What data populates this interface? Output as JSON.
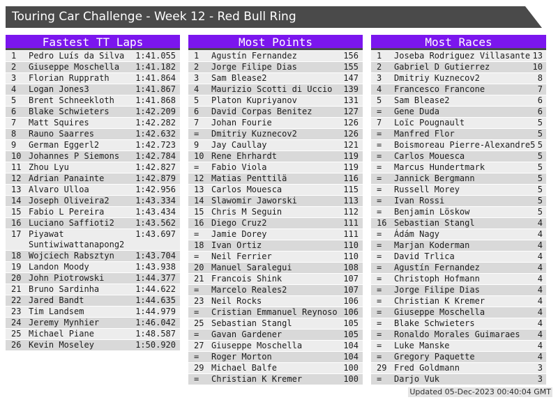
{
  "title": "Touring Car Challenge - Week 12 - Red Bull Ring",
  "footer": "Updated 05-Dec-2023 00:40:04 GMT",
  "colors": {
    "accent": "#7b16ee",
    "titlebar": "#4a4a4a",
    "row_light": "#ededed",
    "row_dark": "#d9d9d9"
  },
  "boards": [
    {
      "title": "Fastest TT Laps",
      "rows": [
        {
          "rank": "1",
          "name": "Pedro Luís da Silva",
          "value": "1:41.055"
        },
        {
          "rank": "2",
          "name": "Giuseppe Moschella",
          "value": "1:41.182"
        },
        {
          "rank": "3",
          "name": "Florian Rupprath",
          "value": "1:41.864"
        },
        {
          "rank": "4",
          "name": "Logan Jones3",
          "value": "1:41.867"
        },
        {
          "rank": "5",
          "name": "Brent Schneekloth",
          "value": "1:41.868"
        },
        {
          "rank": "6",
          "name": "Blake Schwieters",
          "value": "1:42.209"
        },
        {
          "rank": "7",
          "name": "Matt Squires",
          "value": "1:42.282"
        },
        {
          "rank": "8",
          "name": "Rauno Saarres",
          "value": "1:42.632"
        },
        {
          "rank": "9",
          "name": "German Eggerl2",
          "value": "1:42.723"
        },
        {
          "rank": "10",
          "name": "Johannes P Siemons",
          "value": "1:42.784"
        },
        {
          "rank": "11",
          "name": "Zhou Lyu",
          "value": "1:42.827"
        },
        {
          "rank": "12",
          "name": "Adrian Panainte",
          "value": "1:42.879"
        },
        {
          "rank": "13",
          "name": "Alvaro Ulloa",
          "value": "1:42.956"
        },
        {
          "rank": "14",
          "name": "Joseph Oliveira2",
          "value": "1:43.334"
        },
        {
          "rank": "15",
          "name": "Fabio L Pereira",
          "value": "1:43.434"
        },
        {
          "rank": "16",
          "name": "Luciano Saffioti2",
          "value": "1:43.562"
        },
        {
          "rank": "17",
          "name": "Piyawat Suntiwiwattanapong2",
          "value": "1:43.697"
        },
        {
          "rank": "18",
          "name": "Wojciech Rabsztyn",
          "value": "1:43.704"
        },
        {
          "rank": "19",
          "name": "Landon Moody",
          "value": "1:43.938"
        },
        {
          "rank": "20",
          "name": "John Piotrowski",
          "value": "1:44.377"
        },
        {
          "rank": "21",
          "name": "Bruno Sardinha",
          "value": "1:44.622"
        },
        {
          "rank": "22",
          "name": "Jared Bandt",
          "value": "1:44.635"
        },
        {
          "rank": "23",
          "name": "Tim Landsem",
          "value": "1:44.979"
        },
        {
          "rank": "24",
          "name": "Jeremy Mynhier",
          "value": "1:46.042"
        },
        {
          "rank": "25",
          "name": "Michael Piane",
          "value": "1:48.587"
        },
        {
          "rank": "26",
          "name": "Kevin Moseley",
          "value": "1:50.920"
        }
      ]
    },
    {
      "title": "Most Points",
      "rows": [
        {
          "rank": "1",
          "name": "Agustín Fernandez",
          "value": "156"
        },
        {
          "rank": "2",
          "name": "Jorge Filipe Dias",
          "value": "155"
        },
        {
          "rank": "3",
          "name": "Sam Blease2",
          "value": "147"
        },
        {
          "rank": "4",
          "name": "Maurizio Scotti di Uccio",
          "value": "139"
        },
        {
          "rank": "5",
          "name": "Platon Kupriyanov",
          "value": "131"
        },
        {
          "rank": "6",
          "name": "David Corpas Benitez",
          "value": "127"
        },
        {
          "rank": "7",
          "name": "Johan Fourie",
          "value": "126"
        },
        {
          "rank": "=",
          "name": "Dmitriy Kuznecov2",
          "value": "126"
        },
        {
          "rank": "9",
          "name": "Jay Caullay",
          "value": "121"
        },
        {
          "rank": "10",
          "name": "Rene Ehrhardt",
          "value": "119"
        },
        {
          "rank": "=",
          "name": "Fabio Viola",
          "value": "119"
        },
        {
          "rank": "12",
          "name": "Matias Penttilä",
          "value": "116"
        },
        {
          "rank": "13",
          "name": "Carlos Mouesca",
          "value": "115"
        },
        {
          "rank": "14",
          "name": "Slawomir Jaworski",
          "value": "113"
        },
        {
          "rank": "15",
          "name": "Chris M Seguin",
          "value": "112"
        },
        {
          "rank": "16",
          "name": "Diego Cruz2",
          "value": "111"
        },
        {
          "rank": "=",
          "name": "Jamie Dorey",
          "value": "111"
        },
        {
          "rank": "18",
          "name": "Ivan Ortiz",
          "value": "110"
        },
        {
          "rank": "=",
          "name": "Neil Ferrier",
          "value": "110"
        },
        {
          "rank": "20",
          "name": "Manuel Saralegui",
          "value": "108"
        },
        {
          "rank": "21",
          "name": "Francois Shink",
          "value": "107"
        },
        {
          "rank": "=",
          "name": "Marcelo Reales2",
          "value": "107"
        },
        {
          "rank": "23",
          "name": "Neil Rocks",
          "value": "106"
        },
        {
          "rank": "=",
          "name": "Cristian Emmanuel Reynoso",
          "value": "106"
        },
        {
          "rank": "25",
          "name": "Sebastian Stangl",
          "value": "105"
        },
        {
          "rank": "=",
          "name": "Gavan Gardener",
          "value": "105"
        },
        {
          "rank": "27",
          "name": "Giuseppe Moschella",
          "value": "104"
        },
        {
          "rank": "=",
          "name": "Roger Morton",
          "value": "104"
        },
        {
          "rank": "29",
          "name": "Michael Balfe",
          "value": "100"
        },
        {
          "rank": "=",
          "name": "Christian K Kremer",
          "value": "100"
        }
      ]
    },
    {
      "title": "Most Races",
      "rows": [
        {
          "rank": "1",
          "name": "Joseba Rodriguez Villasante",
          "value": "13"
        },
        {
          "rank": "2",
          "name": "Gabriel D Gutierrez",
          "value": "10"
        },
        {
          "rank": "3",
          "name": "Dmitriy Kuznecov2",
          "value": "8"
        },
        {
          "rank": "4",
          "name": "Francesco Francone",
          "value": "7"
        },
        {
          "rank": "5",
          "name": "Sam Blease2",
          "value": "6"
        },
        {
          "rank": "=",
          "name": "Gene Duda",
          "value": "6"
        },
        {
          "rank": "7",
          "name": "Loïc Pougnault",
          "value": "5"
        },
        {
          "rank": "=",
          "name": "Manfred Flor",
          "value": "5"
        },
        {
          "rank": "=",
          "name": "Boismoreau Pierre-Alexandre5",
          "value": "5"
        },
        {
          "rank": "=",
          "name": "Carlos Mouesca",
          "value": "5"
        },
        {
          "rank": "=",
          "name": "Marcus Hundertmark",
          "value": "5"
        },
        {
          "rank": "=",
          "name": "Jannick Bergmann",
          "value": "5"
        },
        {
          "rank": "=",
          "name": "Russell Morey",
          "value": "5"
        },
        {
          "rank": "=",
          "name": "Ivan Rossi",
          "value": "5"
        },
        {
          "rank": "=",
          "name": "Benjamin Löskow",
          "value": "5"
        },
        {
          "rank": "16",
          "name": "Sebastian Stangl",
          "value": "4"
        },
        {
          "rank": "=",
          "name": "Ádám Nagy",
          "value": "4"
        },
        {
          "rank": "=",
          "name": "Marjan Koderman",
          "value": "4"
        },
        {
          "rank": "=",
          "name": "David Trlica",
          "value": "4"
        },
        {
          "rank": "=",
          "name": "Agustín Fernandez",
          "value": "4"
        },
        {
          "rank": "=",
          "name": "Christoph Hofmann",
          "value": "4"
        },
        {
          "rank": "=",
          "name": "Jorge Filipe Dias",
          "value": "4"
        },
        {
          "rank": "=",
          "name": "Christian K Kremer",
          "value": "4"
        },
        {
          "rank": "=",
          "name": "Giuseppe Moschella",
          "value": "4"
        },
        {
          "rank": "=",
          "name": "Blake Schwieters",
          "value": "4"
        },
        {
          "rank": "=",
          "name": "Ronaldo Morales Guimaraes",
          "value": "4"
        },
        {
          "rank": "=",
          "name": "Luke Manske",
          "value": "4"
        },
        {
          "rank": "=",
          "name": "Gregory Paquette",
          "value": "4"
        },
        {
          "rank": "29",
          "name": "Fred Goldmann",
          "value": "3"
        },
        {
          "rank": "=",
          "name": "Darjo Vuk",
          "value": "3"
        }
      ]
    }
  ]
}
